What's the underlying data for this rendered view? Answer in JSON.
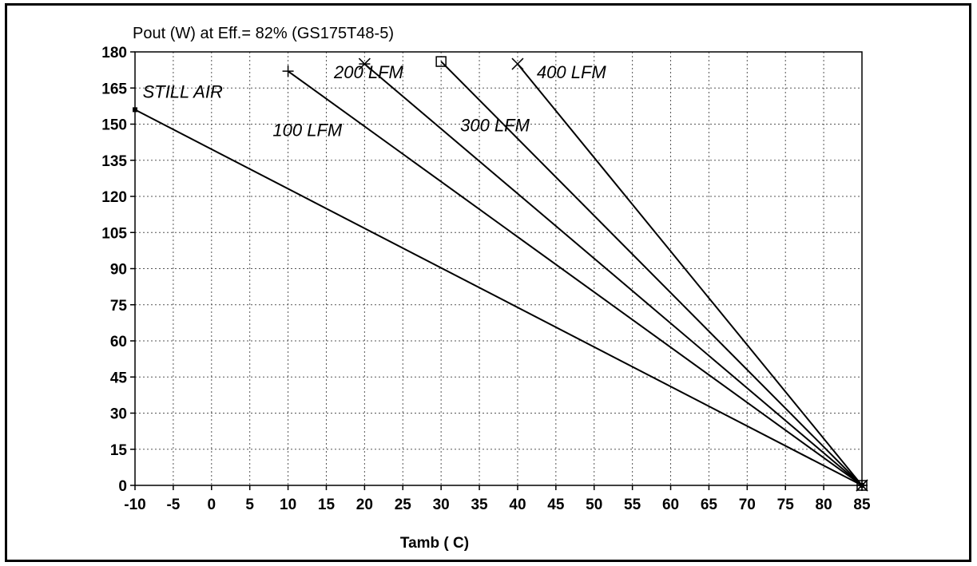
{
  "chart_data": {
    "type": "line",
    "title": "Pout (W) at Eff.= 82% (GS175T48-5)",
    "xlabel": "Tamb ( C)",
    "ylabel": "",
    "xlim": [
      -10,
      85
    ],
    "ylim": [
      0,
      180
    ],
    "x_ticks": [
      -10,
      -5,
      0,
      5,
      10,
      15,
      20,
      25,
      30,
      35,
      40,
      45,
      50,
      55,
      60,
      65,
      70,
      75,
      80,
      85
    ],
    "y_ticks": [
      0,
      15,
      30,
      45,
      60,
      75,
      90,
      105,
      120,
      135,
      150,
      165,
      180
    ],
    "grid": true,
    "legend": "none",
    "line_color": "#000000",
    "series": [
      {
        "name": "STILL AIR",
        "marker": "dot",
        "x": [
          -10,
          85
        ],
        "y": [
          156,
          0
        ],
        "label_pos": [
          -9,
          161
        ]
      },
      {
        "name": "100 LFM",
        "marker": "plus",
        "x": [
          10,
          85
        ],
        "y": [
          172,
          0
        ],
        "label_pos": [
          8,
          145
        ]
      },
      {
        "name": "200 LFM",
        "marker": "star",
        "x": [
          20,
          85
        ],
        "y": [
          175,
          0
        ],
        "label_pos": [
          16,
          169
        ]
      },
      {
        "name": "300 LFM",
        "marker": "square",
        "x": [
          30,
          85
        ],
        "y": [
          176,
          0
        ],
        "label_pos": [
          32.5,
          147
        ]
      },
      {
        "name": "400 LFM",
        "marker": "cross",
        "x": [
          40,
          85
        ],
        "y": [
          175,
          0
        ],
        "label_pos": [
          42.5,
          169
        ]
      }
    ]
  }
}
